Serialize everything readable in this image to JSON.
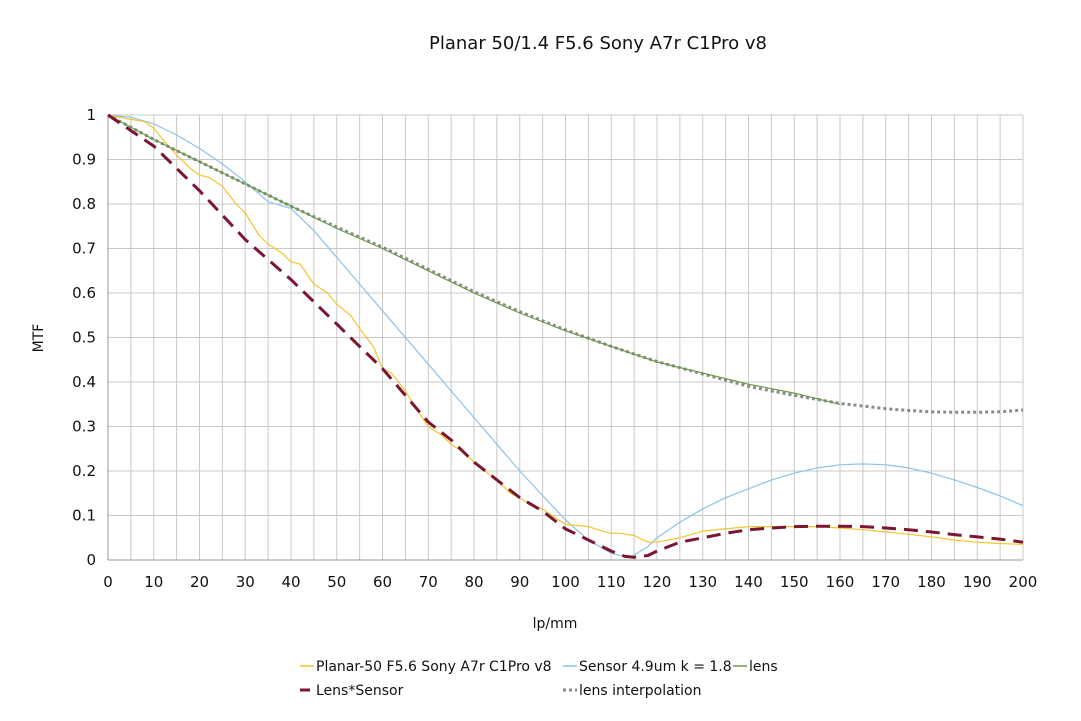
{
  "chart_data": {
    "type": "line",
    "title": "Planar 50/1.4 F5.6 Sony A7r C1Pro v8",
    "xlabel": "lp/mm",
    "ylabel": "MTF",
    "xlim": [
      0,
      200
    ],
    "ylim": [
      0,
      1
    ],
    "x_major_ticks": [
      0,
      10,
      20,
      30,
      40,
      50,
      60,
      70,
      80,
      90,
      100,
      110,
      120,
      130,
      140,
      150,
      160,
      170,
      180,
      190,
      200
    ],
    "x_minor_step": 5,
    "y_ticks": [
      0,
      0.1,
      0.2,
      0.3,
      0.4,
      0.5,
      0.6,
      0.7,
      0.8,
      0.9,
      1
    ],
    "x_tick_labels": [
      "0",
      "10",
      "20",
      "30",
      "40",
      "50",
      "60",
      "70",
      "80",
      "90",
      "100",
      "110",
      "120",
      "130",
      "140",
      "150",
      "160",
      "170",
      "180",
      "190",
      "200"
    ],
    "y_tick_labels": [
      "0",
      "0.1",
      "0.2",
      "0.3",
      "0.4",
      "0.5",
      "0.6",
      "0.7",
      "0.8",
      "0.9",
      "1"
    ],
    "grid": true,
    "legend_position": "bottom",
    "series": [
      {
        "name": "Planar-50 F5.6 Sony A7r  C1Pro v8",
        "color": "#f5c431",
        "style": "solid",
        "x": [
          0,
          5,
          8,
          10,
          12,
          15,
          18,
          20,
          22,
          25,
          28,
          30,
          33,
          35,
          38,
          40,
          42,
          45,
          48,
          50,
          53,
          55,
          58,
          60,
          62,
          65,
          68,
          70,
          73,
          75,
          78,
          80,
          83,
          85,
          88,
          90,
          93,
          95,
          97,
          100,
          105,
          108,
          110,
          112,
          115,
          118,
          120,
          125,
          130,
          135,
          140,
          145,
          150,
          155,
          160,
          165,
          170,
          175,
          180,
          185,
          190,
          195,
          200
        ],
        "y": [
          1.0,
          0.99,
          0.985,
          0.97,
          0.945,
          0.91,
          0.88,
          0.865,
          0.86,
          0.84,
          0.8,
          0.78,
          0.73,
          0.71,
          0.69,
          0.67,
          0.665,
          0.62,
          0.6,
          0.575,
          0.55,
          0.52,
          0.48,
          0.43,
          0.42,
          0.38,
          0.33,
          0.3,
          0.28,
          0.26,
          0.24,
          0.22,
          0.195,
          0.18,
          0.15,
          0.14,
          0.12,
          0.115,
          0.1,
          0.08,
          0.075,
          0.065,
          0.06,
          0.06,
          0.055,
          0.04,
          0.04,
          0.05,
          0.065,
          0.07,
          0.075,
          0.075,
          0.075,
          0.075,
          0.072,
          0.068,
          0.063,
          0.058,
          0.052,
          0.045,
          0.04,
          0.037,
          0.035
        ]
      },
      {
        "name": "Sensor 4.9um k = 1.8",
        "color": "#8cc3e8",
        "style": "solid",
        "x": [
          0,
          5,
          10,
          15,
          20,
          25,
          30,
          35,
          40,
          45,
          50,
          55,
          60,
          65,
          70,
          75,
          80,
          85,
          90,
          95,
          100,
          105,
          110,
          114,
          118,
          120,
          125,
          130,
          135,
          140,
          145,
          150,
          155,
          160,
          165,
          170,
          175,
          180,
          185,
          190,
          195,
          200
        ],
        "y": [
          1.0,
          0.995,
          0.98,
          0.955,
          0.925,
          0.89,
          0.85,
          0.805,
          0.79,
          0.74,
          0.68,
          0.62,
          0.56,
          0.5,
          0.44,
          0.38,
          0.32,
          0.26,
          0.2,
          0.145,
          0.09,
          0.045,
          0.015,
          0.005,
          0.03,
          0.05,
          0.085,
          0.115,
          0.14,
          0.16,
          0.18,
          0.195,
          0.207,
          0.214,
          0.216,
          0.214,
          0.207,
          0.195,
          0.18,
          0.163,
          0.144,
          0.122
        ]
      },
      {
        "name": "lens",
        "color": "#6a9a48",
        "style": "solid",
        "x": [
          0,
          10,
          20,
          30,
          40,
          50,
          60,
          70,
          80,
          90,
          100,
          110,
          120,
          130,
          140,
          150,
          160
        ],
        "y": [
          1.0,
          0.945,
          0.895,
          0.845,
          0.795,
          0.745,
          0.7,
          0.65,
          0.6,
          0.555,
          0.515,
          0.48,
          0.445,
          0.42,
          0.395,
          0.375,
          0.35
        ]
      },
      {
        "name": "Lens*Sensor",
        "color": "#7b1530",
        "style": "dashed",
        "x": [
          0,
          10,
          20,
          30,
          40,
          50,
          55,
          60,
          65,
          70,
          75,
          80,
          85,
          90,
          95,
          100,
          105,
          110,
          113,
          115,
          118,
          120,
          125,
          130,
          135,
          140,
          145,
          150,
          155,
          160,
          165,
          170,
          175,
          180,
          185,
          190,
          195,
          200
        ],
        "y": [
          1.0,
          0.93,
          0.83,
          0.72,
          0.63,
          0.53,
          0.48,
          0.43,
          0.37,
          0.31,
          0.27,
          0.22,
          0.18,
          0.14,
          0.11,
          0.07,
          0.045,
          0.02,
          0.008,
          0.006,
          0.01,
          0.02,
          0.04,
          0.05,
          0.06,
          0.068,
          0.072,
          0.075,
          0.076,
          0.076,
          0.075,
          0.072,
          0.068,
          0.063,
          0.057,
          0.052,
          0.047,
          0.04
        ]
      },
      {
        "name": "lens interpolation",
        "color": "#8a8a8a",
        "style": "dotted",
        "x": [
          0,
          10,
          20,
          30,
          40,
          50,
          60,
          70,
          80,
          90,
          100,
          110,
          120,
          130,
          140,
          150,
          160,
          165,
          170,
          175,
          180,
          185,
          190,
          195,
          200
        ],
        "y": [
          1.0,
          0.945,
          0.895,
          0.845,
          0.795,
          0.748,
          0.703,
          0.653,
          0.603,
          0.558,
          0.517,
          0.48,
          0.446,
          0.418,
          0.39,
          0.37,
          0.352,
          0.346,
          0.34,
          0.336,
          0.333,
          0.332,
          0.332,
          0.333,
          0.337
        ]
      }
    ]
  }
}
